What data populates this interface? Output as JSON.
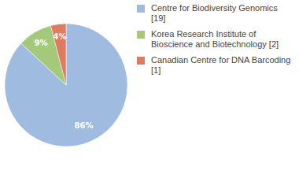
{
  "chart_data": {
    "type": "pie",
    "categories": [
      "Centre for Biodiversity Genomics [19]",
      "Korea Research Institute of Bioscience and Biotechnology [2]",
      "Canadian Centre for DNA Barcoding [1]"
    ],
    "values": [
      86,
      9,
      4
    ],
    "value_labels": [
      "86%",
      "9%",
      "4%"
    ],
    "colors": [
      "#9fbbe0",
      "#a4c97a",
      "#e07b5f"
    ],
    "data_labels": true
  }
}
